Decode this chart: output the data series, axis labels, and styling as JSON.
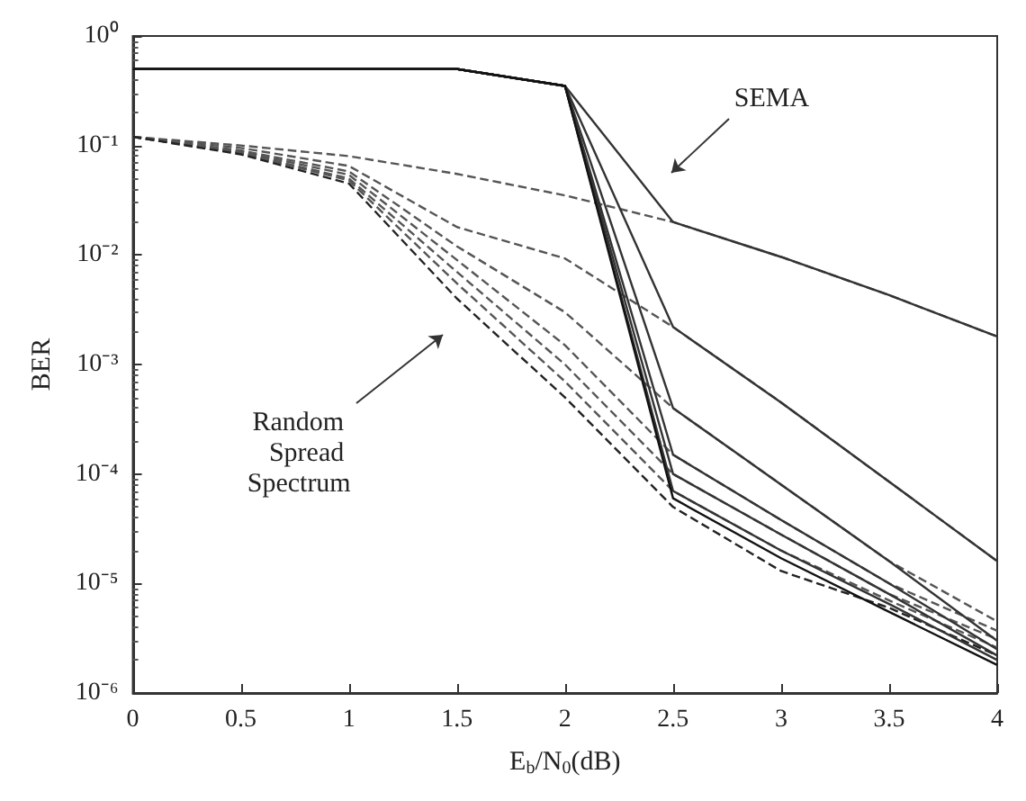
{
  "chart_data": {
    "type": "line",
    "xlabel": "E$_{b}$/N$_{0}$(dB)",
    "ylabel": "BER",
    "x": [
      0,
      0.5,
      1,
      1.5,
      2,
      2.5,
      3,
      3.5,
      4
    ],
    "xlim": [
      0,
      4
    ],
    "xticks": [
      0,
      0.5,
      1,
      1.5,
      2,
      2.5,
      3,
      3.5,
      4
    ],
    "ylim": [
      1e-06,
      1
    ],
    "yticks": [
      {
        "value": 1e-06,
        "label": "10⁻⁶"
      },
      {
        "value": 1e-05,
        "label": "10⁻⁵"
      },
      {
        "value": 0.0001,
        "label": "10⁻⁴"
      },
      {
        "value": 0.001,
        "label": "10⁻³"
      },
      {
        "value": 0.01,
        "label": "10⁻²"
      },
      {
        "value": 0.1,
        "label": "10⁻¹"
      },
      {
        "value": 1,
        "label": "10⁰"
      }
    ],
    "log": "y",
    "grid": false,
    "marker": "none",
    "series": [
      {
        "color": "#555555",
        "line_style": "dashed",
        "values": [
          0.12,
          0.1,
          0.08,
          0.055,
          0.035,
          0.02,
          0.0096,
          0.0043,
          0.0018
        ]
      },
      {
        "color": "#555555",
        "line_style": "dashed",
        "values": [
          0.12,
          0.095,
          0.065,
          0.018,
          0.0093,
          0.0022,
          0.00045,
          8.5e-05,
          1.6e-05
        ]
      },
      {
        "color": "#555555",
        "line_style": "dashed",
        "values": [
          0.12,
          0.09,
          0.058,
          0.012,
          0.003,
          0.0004,
          8e-05,
          1.6e-05,
          4.5e-06
        ]
      },
      {
        "color": "#555555",
        "line_style": "dashed",
        "values": [
          0.12,
          0.088,
          0.054,
          0.009,
          0.0015,
          0.00015,
          3.8e-05,
          1e-05,
          3.7e-06
        ]
      },
      {
        "color": "#555555",
        "line_style": "dashed",
        "values": [
          0.12,
          0.086,
          0.05,
          0.007,
          0.001,
          0.0001,
          2.8e-05,
          8e-06,
          3.1e-06
        ]
      },
      {
        "color": "#555555",
        "line_style": "dashed",
        "values": [
          0.12,
          0.085,
          0.048,
          0.0055,
          0.0007,
          7e-05,
          2e-05,
          7e-06,
          2.6e-06
        ]
      },
      {
        "color": "#222222",
        "line_style": "dashed",
        "values": [
          0.12,
          0.083,
          0.045,
          0.004,
          0.0005,
          5e-05,
          1.3e-05,
          6e-06,
          2.2e-06
        ]
      },
      {
        "color": "#333333",
        "line_style": "solid",
        "values": [
          0.5,
          0.5,
          0.5,
          0.5,
          0.35,
          0.02,
          0.0096,
          0.0043,
          0.0018
        ]
      },
      {
        "color": "#333333",
        "line_style": "solid",
        "values": [
          0.5,
          0.5,
          0.5,
          0.5,
          0.35,
          0.0022,
          0.00045,
          8.5e-05,
          1.6e-05
        ]
      },
      {
        "color": "#333333",
        "line_style": "solid",
        "values": [
          0.5,
          0.5,
          0.5,
          0.5,
          0.35,
          0.0004,
          8e-05,
          1.6e-05,
          3e-06
        ]
      },
      {
        "color": "#333333",
        "line_style": "solid",
        "values": [
          0.5,
          0.5,
          0.5,
          0.5,
          0.35,
          0.00015,
          3.8e-05,
          1e-05,
          2.5e-06
        ]
      },
      {
        "color": "#333333",
        "line_style": "solid",
        "values": [
          0.5,
          0.5,
          0.5,
          0.5,
          0.35,
          0.0001,
          2.8e-05,
          8e-06,
          2.2e-06
        ]
      },
      {
        "color": "#333333",
        "line_style": "solid",
        "values": [
          0.5,
          0.5,
          0.5,
          0.5,
          0.35,
          7e-05,
          2e-05,
          6.5e-06,
          2e-06
        ]
      },
      {
        "color": "#111111",
        "line_style": "solid",
        "values": [
          0.5,
          0.5,
          0.5,
          0.5,
          0.35,
          6e-05,
          1.7e-05,
          5.5e-06,
          1.8e-06
        ]
      }
    ],
    "annotations": [
      "SEMA",
      "Random Spread Spectrum"
    ]
  }
}
